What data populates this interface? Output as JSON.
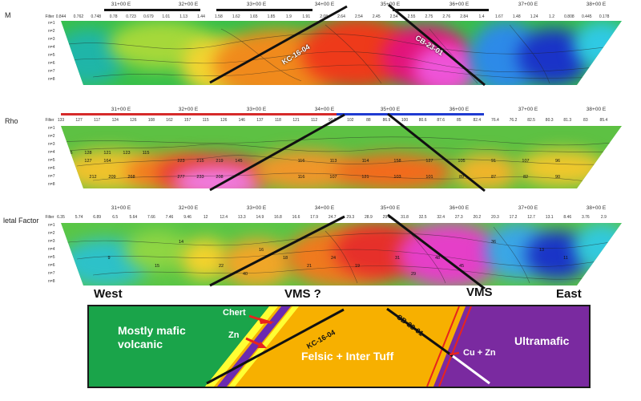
{
  "panels": [
    {
      "id": "m",
      "label": "M",
      "stations": [
        "31+00 E",
        "32+00 E",
        "33+00 E",
        "34+00 E",
        "35+00 E",
        "36+00 E",
        "37+00 E",
        "38+00 E"
      ],
      "filter_label": "Filter",
      "filter_values": [
        "0.844",
        "0.762",
        "0.748",
        "0.78",
        "0.723",
        "0.679",
        "1.01",
        "1.13",
        "1.44",
        "1.58",
        "1.62",
        "1.65",
        "1.85",
        "1.9",
        "1.91",
        "2.08",
        "2.64",
        "2.54",
        "2.45",
        "2.54",
        "2.55",
        "2.75",
        "2.76",
        "2.84",
        "1.4",
        "1.67",
        "1.48",
        "1.24",
        "1.2",
        "0.808",
        "0.445",
        "0.178"
      ],
      "n_labels": [
        "n=1",
        "n=2",
        "n=3",
        "n=4",
        "n=5",
        "n=6",
        "n=7",
        "n=8"
      ],
      "values": []
    },
    {
      "id": "rho",
      "label": "Rho",
      "stations": [
        "31+00 E",
        "32+00 E",
        "33+00 E",
        "34+00 E",
        "35+00 E",
        "36+00 E",
        "37+00 E",
        "38+00 E"
      ],
      "filter_label": "Filter",
      "filter_values": [
        "133",
        "127",
        "117",
        "124",
        "126",
        "108",
        "162",
        "157",
        "115",
        "126",
        "146",
        "137",
        "118",
        "121",
        "112",
        "90.2",
        "102",
        "88",
        "86.9",
        "100",
        "80.6",
        "87.6",
        "85",
        "82.4",
        "76.4",
        "76.2",
        "82.5",
        "80.3",
        "81.3",
        "83",
        "85.4"
      ],
      "n_labels": [
        "n=1",
        "n=2",
        "n=3",
        "n=4",
        "n=5",
        "n=6",
        "n=7",
        "n=8"
      ],
      "values": [
        "126",
        "101",
        "128",
        "121",
        "123",
        "115",
        "111",
        "114",
        "105",
        "99",
        "98",
        "95",
        "93",
        "89",
        "91",
        "180",
        "127",
        "164",
        "223",
        "215",
        "219",
        "145",
        "124",
        "127",
        "116",
        "113",
        "114",
        "158",
        "127",
        "105",
        "91",
        "107",
        "96",
        "93",
        "97",
        "92",
        "88",
        "94",
        "100",
        "157",
        "212",
        "209",
        "268",
        "277",
        "233",
        "208",
        "159",
        "139",
        "114",
        "97",
        "142",
        "114",
        "121",
        "117",
        "99",
        "81",
        "85",
        "78",
        "91",
        "109",
        "116",
        "107",
        "121",
        "103",
        "101",
        "89",
        "87",
        "82",
        "90",
        "78",
        "83"
      ]
    },
    {
      "id": "mf",
      "label": "letal Factor",
      "stations": [
        "31+00 E",
        "32+00 E",
        "33+00 E",
        "34+00 E",
        "35+00 E",
        "36+00 E",
        "37+00 E",
        "38+00 E"
      ],
      "filter_label": "Filter",
      "filter_values": [
        "6.35",
        "5.74",
        "6.89",
        "6.5",
        "5.64",
        "7.66",
        "7.46",
        "9.46",
        "12",
        "12.4",
        "13.3",
        "14.9",
        "16.8",
        "16.6",
        "17.9",
        "24.7",
        "29.3",
        "28.9",
        "29.2",
        "31.8",
        "32.5",
        "32.4",
        "27.3",
        "20.2",
        "20.3",
        "17.2",
        "12.7",
        "13.1",
        "8.46",
        "3.76",
        "2.9"
      ],
      "n_labels": [
        "n=1",
        "n=2",
        "n=3",
        "n=4",
        "n=5",
        "n=6",
        "n=7",
        "n=8"
      ],
      "values": [
        "14",
        "9",
        "16",
        "18",
        "21",
        "24",
        "19",
        "31",
        "48",
        "45",
        "29",
        "36",
        "40",
        "13",
        "11",
        "15",
        "22"
      ]
    }
  ],
  "drill_holes": {
    "kc": "KC-16-04",
    "cb": "CB-23-01"
  },
  "labels": {
    "west": "West",
    "vms_q": "VMS ?",
    "vms": "VMS",
    "east": "East"
  },
  "geology": {
    "mafic": "Mostly mafic\nvolcanic",
    "chert": "Chert",
    "zn": "Zn",
    "felsic": "Felsic + Inter Tuff",
    "ultramafic": "Ultramafic",
    "cuzn": "Cu + Zn",
    "kc": "KC-16-04",
    "cb": "CB-23-01"
  },
  "colors": {
    "mafic": "#1aa44a",
    "felsic": "#f7b000",
    "ultramafic": "#7a2aa0",
    "chert": "#ffff33",
    "thin_purple": "#6b2ab0",
    "red": "#e8241d",
    "drillhole": "#111111"
  }
}
